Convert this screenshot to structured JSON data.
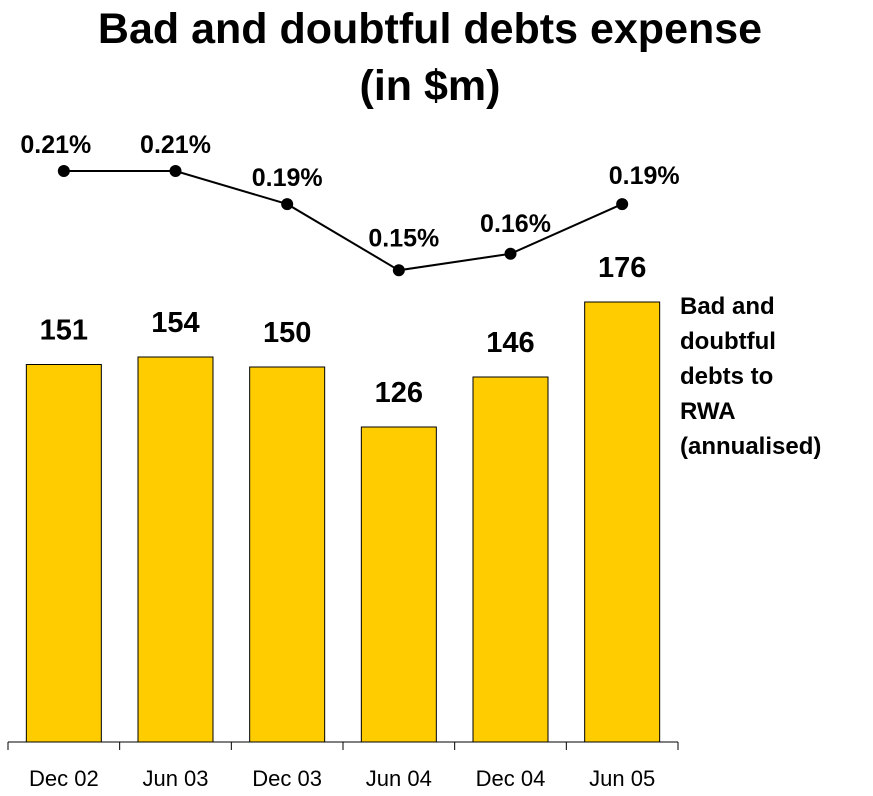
{
  "chart_data": {
    "type": "bar",
    "title_lines": [
      "Bad and doubtful debts expense",
      "(in $m)"
    ],
    "categories": [
      "Dec 02",
      "Jun 03",
      "Dec 03",
      "Jun 04",
      "Dec 04",
      "Jun 05"
    ],
    "series": [
      {
        "type": "bar",
        "values": [
          151,
          154,
          150,
          126,
          146,
          176
        ],
        "labels": [
          "151",
          "154",
          "150",
          "126",
          "146",
          "176"
        ],
        "color": "#FFCC00"
      },
      {
        "type": "line",
        "name_lines": [
          "Bad and",
          "doubtful",
          "debts to",
          "RWA",
          "(annualised)"
        ],
        "values": [
          0.21,
          0.21,
          0.19,
          0.15,
          0.16,
          0.19
        ],
        "labels": [
          "0.21%",
          "0.21%",
          "0.19%",
          "0.15%",
          "0.16%",
          "0.19%"
        ],
        "color": "#000000"
      }
    ],
    "grid": false,
    "legend_position": "right"
  }
}
